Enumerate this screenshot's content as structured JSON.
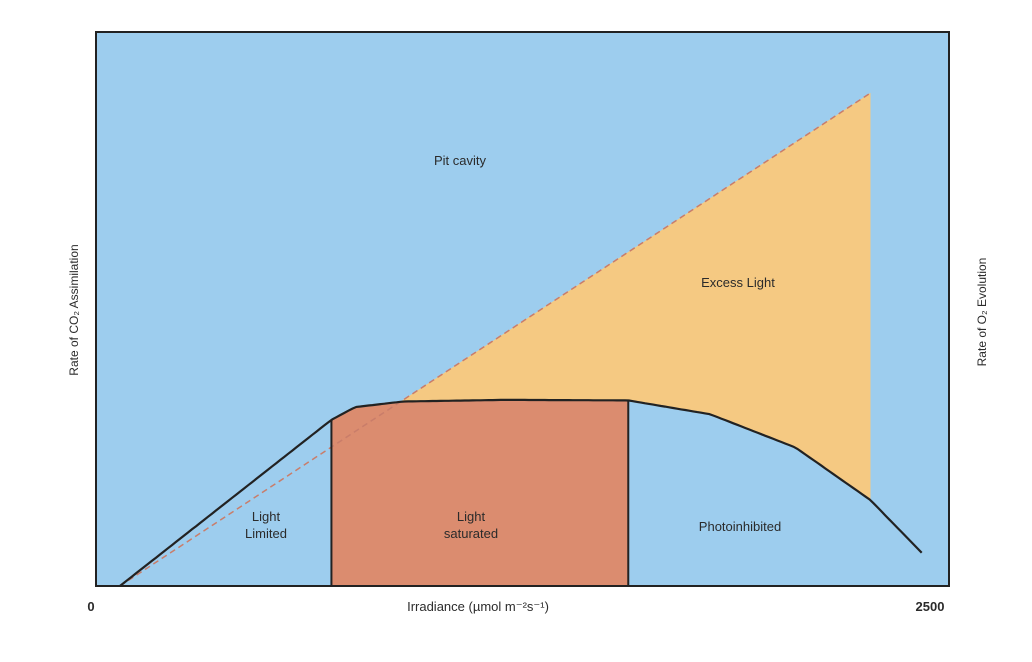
{
  "chart_data": {
    "type": "area",
    "title": "",
    "xlabel": "Irradiance (µmol m⁻²s⁻¹)",
    "ylabel_left": "Rate of CO₂ Assimilation",
    "ylabel_right": "Rate of O₂ Evolution",
    "x_ticks": [
      "0",
      "2500"
    ],
    "xlim": [
      0,
      2500
    ],
    "ylim": [
      0,
      100
    ],
    "regions": [
      {
        "label": "Pit cavity",
        "color": "#9dcdee"
      },
      {
        "label": "Excess Light",
        "color": "#f5c982"
      },
      {
        "label": "Light Limited",
        "color": "#9dcdee"
      },
      {
        "label": "Light saturated",
        "color": "#db8c6f"
      },
      {
        "label": "Photoinhibited",
        "color": "#9dcdee"
      }
    ],
    "boundaries": {
      "light_limited_end": 690,
      "light_saturated_end": 1560,
      "excess_light_end": 2270
    },
    "potential_line": {
      "style": "dashed",
      "color": "#c97d6a",
      "x": [
        70,
        2270
      ],
      "y": [
        0,
        89
      ]
    },
    "actual_curve": {
      "x": [
        70,
        690,
        760,
        900,
        1200,
        1560,
        1800,
        2050,
        2270,
        2420
      ],
      "y": [
        0,
        30,
        32.3,
        33.3,
        33.6,
        33.5,
        31,
        25,
        15.5,
        6
      ]
    },
    "colors": {
      "background": "#9dcdee",
      "frame": "#222222",
      "curve": "#222222"
    },
    "legend": "none",
    "grid": false
  }
}
